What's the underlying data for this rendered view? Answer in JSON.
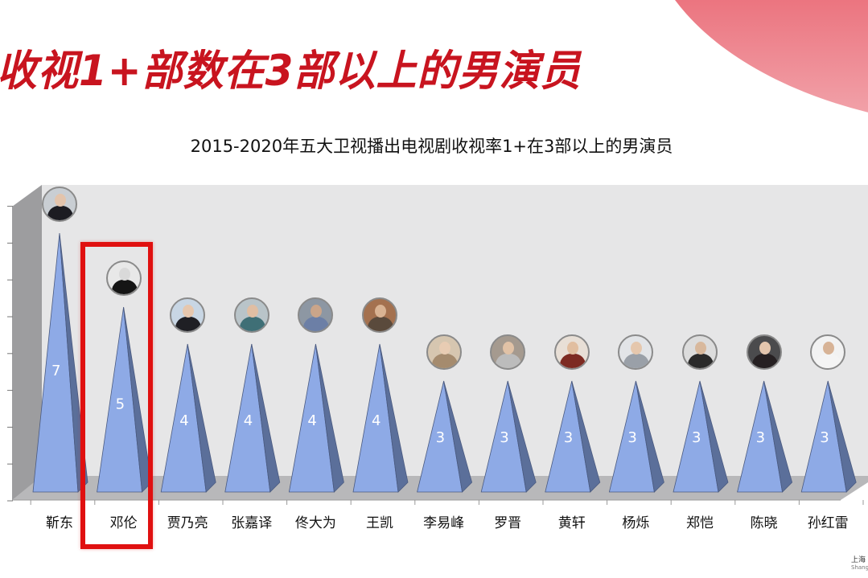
{
  "slide": {
    "title": "收视1+部数在3部以上的男演员",
    "accent_color": "#c8141f",
    "decoration": "red-gradient-arc-top-right"
  },
  "watermark": {
    "line1": "上海",
    "line2": "Shang"
  },
  "highlight": {
    "actor": "邓伦",
    "color": "#e01010"
  },
  "chart_data": {
    "type": "bar",
    "style": "3d-pyramid",
    "title": "2015-2020年五大卫视播出电视剧收视率1+在3部以上的男演员",
    "xlabel": "",
    "ylabel": "",
    "categories": [
      "靳东",
      "邓伦",
      "贾乃亮",
      "张嘉译",
      "佟大为",
      "王凯",
      "李易峰",
      "罗晋",
      "黄轩",
      "杨烁",
      "郑恺",
      "陈晓",
      "孙红雷"
    ],
    "values": [
      7,
      5,
      4,
      4,
      4,
      4,
      3,
      3,
      3,
      3,
      3,
      3,
      3
    ],
    "data_labels": [
      "7",
      "5",
      "4",
      "4",
      "4",
      "4",
      "3",
      "3",
      "3",
      "3",
      "3",
      "3",
      "3"
    ],
    "ylim": [
      0,
      8
    ],
    "y_ticks": [
      0,
      1,
      2,
      3,
      4,
      5,
      6,
      7,
      8
    ],
    "y_tick_labels_visible": false,
    "grid": false,
    "legend": "none",
    "bar_color": "#8eaae6",
    "bar_shade_color": "#5b6f9a",
    "annotations": [
      "avatar photo above each pyramid",
      "red box highlighting 邓伦"
    ]
  },
  "avatars": [
    {
      "bg": "#c9ced3",
      "skin": "#e3c4ac",
      "cloth": "#1c1c22"
    },
    {
      "bg": "#e8e8e8",
      "skin": "#d9d9d9",
      "cloth": "#151515"
    },
    {
      "bg": "#c8d6e4",
      "skin": "#e6c7ae",
      "cloth": "#1f1f24"
    },
    {
      "bg": "#b9c4c9",
      "skin": "#e0bea3",
      "cloth": "#3f6f76"
    },
    {
      "bg": "#8d97a3",
      "skin": "#caa58a",
      "cloth": "#6c7fa6"
    },
    {
      "bg": "#a4714f",
      "skin": "#d9b393",
      "cloth": "#5a4a3c"
    },
    {
      "bg": "#d6c6b0",
      "skin": "#e8ccb3",
      "cloth": "#a58b6e"
    },
    {
      "bg": "#a59a8f",
      "skin": "#e1c2a6",
      "cloth": "#bcbcbc"
    },
    {
      "bg": "#e8dfd6",
      "skin": "#e1bea0",
      "cloth": "#7d2a22"
    },
    {
      "bg": "#e2e4e7",
      "skin": "#e5c7ad",
      "cloth": "#9aa0a8"
    },
    {
      "bg": "#dcdcdc",
      "skin": "#d8b89c",
      "cloth": "#2a2a2a"
    },
    {
      "bg": "#4b4b4d",
      "skin": "#e3c5ad",
      "cloth": "#262022"
    },
    {
      "bg": "#f2f2f2",
      "skin": "#d7b396",
      "cloth": "#f4f4f4"
    }
  ]
}
